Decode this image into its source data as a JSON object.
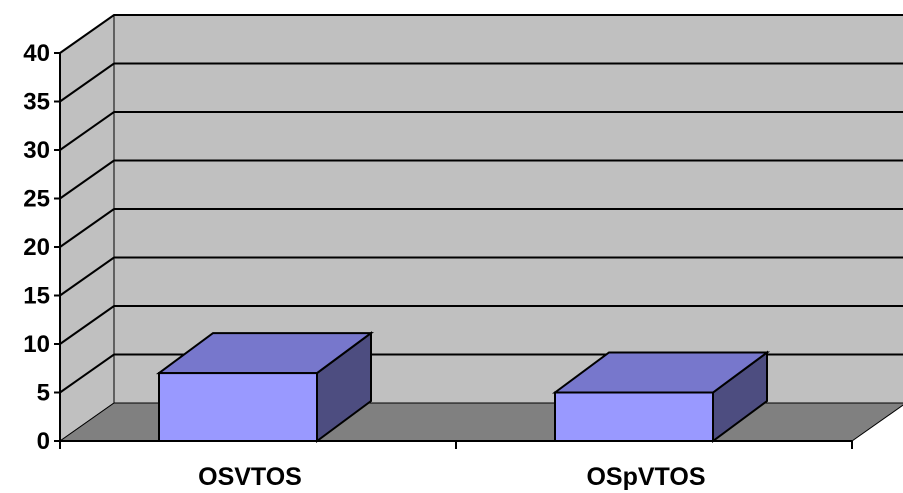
{
  "chart_data": {
    "type": "bar",
    "title": "",
    "xlabel": "",
    "ylabel": "",
    "categories": [
      "OSVTOS",
      "OSpVTOS"
    ],
    "values": [
      7,
      5
    ],
    "ylim": [
      0,
      40
    ],
    "yticks": [
      "0",
      "5",
      "10",
      "15",
      "20",
      "25",
      "30",
      "35",
      "40"
    ],
    "grid": true,
    "three_d": true,
    "colors": {
      "back_wall": "#C0C0C0",
      "floor": "#808080",
      "bar_front": "#9999FF",
      "bar_top": "#7777CC",
      "bar_side": "#4D4D80",
      "line": "#000000"
    }
  }
}
